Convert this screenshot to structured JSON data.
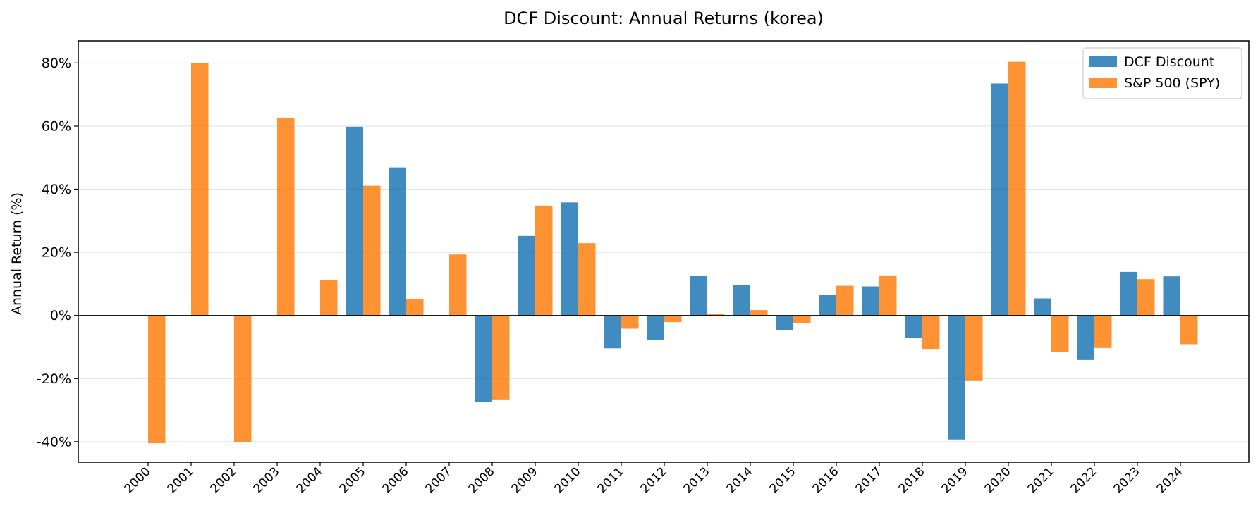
{
  "chart_data": {
    "type": "bar",
    "title": "DCF Discount: Annual Returns (korea)",
    "xlabel": "",
    "ylabel": "Annual Return (%)",
    "ylim": [
      -46.5,
      87
    ],
    "yticks": [
      -40,
      -20,
      0,
      20,
      40,
      60,
      80
    ],
    "ytick_labels": [
      "-40%",
      "-20%",
      "0%",
      "20%",
      "40%",
      "60%",
      "80%"
    ],
    "grid": "horizontal",
    "legend_position": "top-right",
    "categories": [
      "2000",
      "2001",
      "2002",
      "2003",
      "2004",
      "2005",
      "2006",
      "2007",
      "2008",
      "2009",
      "2010",
      "2011",
      "2012",
      "2013",
      "2014",
      "2015",
      "2016",
      "2017",
      "2018",
      "2019",
      "2020",
      "2021",
      "2022",
      "2023",
      "2024"
    ],
    "series": [
      {
        "name": "DCF Discount",
        "color": "#1f77b4",
        "values": [
          null,
          null,
          null,
          null,
          null,
          59.8,
          46.9,
          null,
          -27.5,
          25.2,
          35.8,
          -10.4,
          -7.7,
          12.5,
          9.6,
          -4.7,
          6.5,
          9.2,
          -7.1,
          -39.3,
          73.5,
          5.4,
          -14.1,
          13.8,
          12.4
        ]
      },
      {
        "name": "S&P 500 (SPY)",
        "color": "#ff7f0e",
        "values": [
          -40.5,
          79.9,
          -40.1,
          62.6,
          11.2,
          41.1,
          5.2,
          19.3,
          -26.6,
          34.8,
          22.9,
          -4.2,
          -2.1,
          0.4,
          1.7,
          -2.4,
          9.4,
          12.7,
          -10.8,
          -20.8,
          80.4,
          -11.5,
          -10.3,
          11.5,
          -9.1
        ]
      }
    ]
  }
}
